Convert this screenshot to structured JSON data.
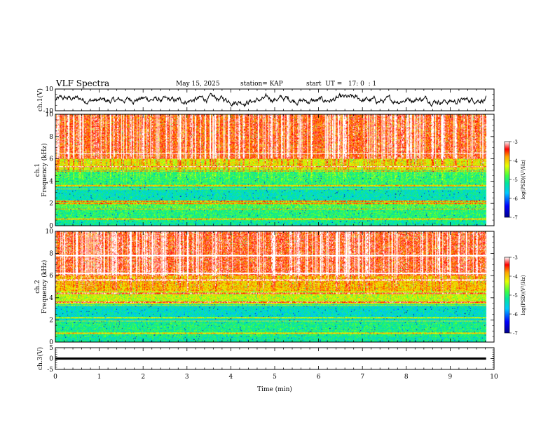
{
  "header": {
    "title": "VLF Spectra",
    "date": "May 15, 2025",
    "station": "station= KAP",
    "start": "start  UT =   17: 0  : 1"
  },
  "chart_data": [
    {
      "type": "line",
      "name": "ch1-waveform",
      "ylabel": "ch.1(V)",
      "ylim": [
        -10,
        10
      ],
      "yticks": [
        "10",
        "-10"
      ],
      "xlim": [
        0,
        10
      ],
      "x_extent_min": 9.82,
      "baseline": 0,
      "noise_amplitude": 3.5
    },
    {
      "type": "heatmap",
      "name": "ch1-spectrogram",
      "ylabel_line1": "ch.1",
      "ylabel_line2": "Frequency (kHz)",
      "ylim": [
        0,
        10
      ],
      "yticks": [
        "0",
        "2",
        "4",
        "6",
        "8",
        "10"
      ],
      "x_extent_min": 9.82,
      "colorbar": {
        "label": "log(PSD)(V²/Hz)",
        "ticks": [
          "-3",
          "-4",
          "-5",
          "-6",
          "-7"
        ]
      },
      "bands_khz": [
        {
          "from": 0,
          "to": 0.5,
          "level": 0.45
        },
        {
          "from": 0.5,
          "to": 1.6,
          "level": 0.5
        },
        {
          "from": 1.6,
          "to": 2.3,
          "level": 0.55
        },
        {
          "from": 2.3,
          "to": 3.5,
          "level": 0.42
        },
        {
          "from": 3.5,
          "to": 5.0,
          "level": 0.5
        },
        {
          "from": 5.0,
          "to": 6.0,
          "level": 0.68
        },
        {
          "from": 6.0,
          "to": 10,
          "level": 0.86
        }
      ],
      "lines_khz": [
        0.6,
        1.5,
        2.0,
        2.2,
        3.3,
        3.6,
        4.9,
        5.3,
        6.5
      ]
    },
    {
      "type": "heatmap",
      "name": "ch2-spectrogram",
      "ylabel_line1": "ch.2",
      "ylabel_line2": "Frequency (kHz)",
      "ylim": [
        0,
        10
      ],
      "yticks": [
        "0",
        "2",
        "4",
        "6",
        "8",
        "10"
      ],
      "x_extent_min": 9.82,
      "colorbar": {
        "label": "log(PSD)(V²/Hz)",
        "ticks": [
          "-3",
          "-4",
          "-5",
          "-6",
          "-7"
        ]
      },
      "bands_khz": [
        {
          "from": 0,
          "to": 0.5,
          "level": 0.45
        },
        {
          "from": 0.5,
          "to": 1.8,
          "level": 0.48
        },
        {
          "from": 1.8,
          "to": 3.4,
          "level": 0.4
        },
        {
          "from": 3.4,
          "to": 4.6,
          "level": 0.65
        },
        {
          "from": 4.6,
          "to": 6.0,
          "level": 0.75
        },
        {
          "from": 6.0,
          "to": 10,
          "level": 0.88
        }
      ],
      "lines_khz": [
        0.8,
        1.9,
        2.2,
        3.3,
        3.6,
        4.4,
        5.6,
        6.2,
        7.8
      ]
    },
    {
      "type": "line",
      "name": "ch3-waveform",
      "ylabel": "ch.3(V)",
      "ylim": [
        -5,
        5
      ],
      "yticks": [
        "5",
        "0",
        "-5"
      ],
      "xlim": [
        0,
        10
      ],
      "x_extent_min": 9.82,
      "baseline": 0,
      "trace_thickness_v": 1.0
    }
  ],
  "x_axis": {
    "label": "Time (min)",
    "ticks": [
      "0",
      "1",
      "2",
      "3",
      "4",
      "5",
      "6",
      "7",
      "8",
      "9",
      "10"
    ],
    "range": [
      0,
      10
    ]
  },
  "colors": {
    "axis": "#000000",
    "trace": "#000000",
    "background": "#ffffff"
  }
}
